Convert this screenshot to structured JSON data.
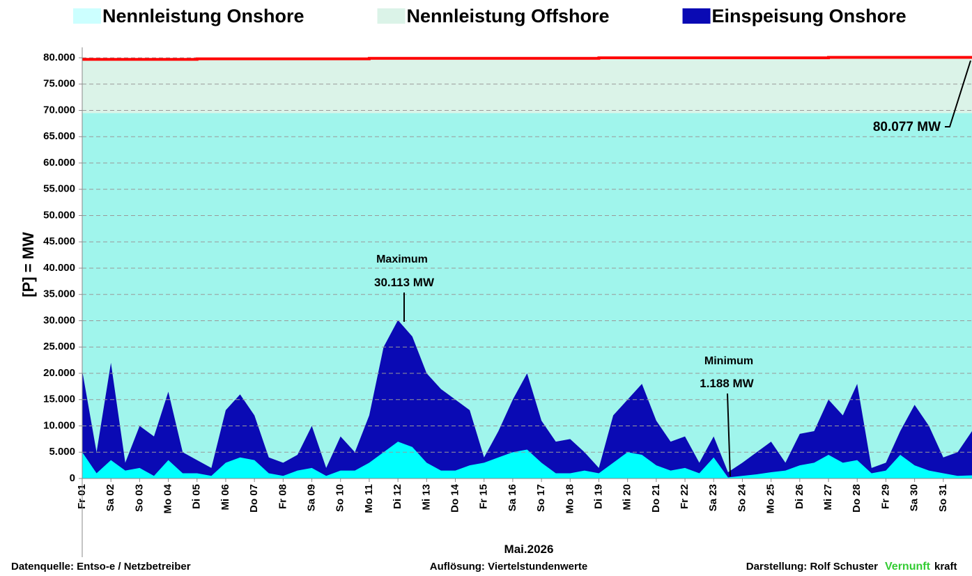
{
  "chart_data": {
    "type": "area",
    "legend": "top",
    "grid": true,
    "ylabel": "[P] = MW",
    "xlabel": "Mai.2026",
    "xlim": [
      1,
      32
    ],
    "ylim": [
      0,
      80000
    ],
    "yticks": [
      0,
      {
        "value": 5000,
        "label": "5.000"
      },
      {
        "value": 10000,
        "label": "10.000"
      },
      {
        "value": 15000,
        "label": "15.000"
      },
      {
        "value": 20000,
        "label": "20.000"
      },
      {
        "value": 25000,
        "label": "25.000"
      },
      {
        "value": 30000,
        "label": "30.000"
      },
      {
        "value": 35000,
        "label": "35.000"
      },
      {
        "value": 40000,
        "label": "40.000"
      },
      {
        "value": 45000,
        "label": "45.000"
      },
      {
        "value": 50000,
        "label": "50.000"
      },
      {
        "value": 55000,
        "label": "55.000"
      },
      {
        "value": 60000,
        "label": "60.000"
      },
      {
        "value": 65000,
        "label": "65.000"
      },
      {
        "value": 70000,
        "label": "70.000"
      },
      {
        "value": 75000,
        "label": "75.000"
      },
      {
        "value": 80000,
        "label": "80.000"
      }
    ],
    "xticks": [
      {
        "value": 1,
        "label": "Fr 01"
      },
      {
        "value": 2,
        "label": "Sa 02"
      },
      {
        "value": 3,
        "label": "So 03"
      },
      {
        "value": 4,
        "label": "Mo 04"
      },
      {
        "value": 5,
        "label": "Di 05"
      },
      {
        "value": 6,
        "label": "Mi 06"
      },
      {
        "value": 7,
        "label": "Do 07"
      },
      {
        "value": 8,
        "label": "Fr 08"
      },
      {
        "value": 9,
        "label": "Sa 09"
      },
      {
        "value": 10,
        "label": "So 10"
      },
      {
        "value": 11,
        "label": "Mo 11"
      },
      {
        "value": 12,
        "label": "Di 12"
      },
      {
        "value": 13,
        "label": "Mi 13"
      },
      {
        "value": 14,
        "label": "Do 14"
      },
      {
        "value": 15,
        "label": "Fr 15"
      },
      {
        "value": 16,
        "label": "Sa 16"
      },
      {
        "value": 17,
        "label": "So 17"
      },
      {
        "value": 18,
        "label": "Mo 18"
      },
      {
        "value": 19,
        "label": "Di 19"
      },
      {
        "value": 20,
        "label": "Mi 20"
      },
      {
        "value": 21,
        "label": "Do 21"
      },
      {
        "value": 22,
        "label": "Fr 22"
      },
      {
        "value": 23,
        "label": "Sa 23"
      },
      {
        "value": 24,
        "label": "So 24"
      },
      {
        "value": 25,
        "label": "Mo 25"
      },
      {
        "value": 26,
        "label": "Di 26"
      },
      {
        "value": 27,
        "label": "Mi 27"
      },
      {
        "value": 28,
        "label": "Do 28"
      },
      {
        "value": 29,
        "label": "Fr 29"
      },
      {
        "value": 30,
        "label": "Sa 30"
      },
      {
        "value": 31,
        "label": "So 31"
      }
    ],
    "series": [
      {
        "name": "Nennleistung Onshore",
        "color": "#a0f5ec",
        "legend_color": "#ccffff",
        "stack": true,
        "x": [
          1,
          32
        ],
        "values": [
          69500,
          69500
        ]
      },
      {
        "name": "Nennleistung Offshore",
        "color": "#dbf3e8",
        "line_color": "#ff0000",
        "stack": true,
        "x": [
          1,
          5,
          5,
          11,
          11,
          19,
          19,
          27,
          27,
          32
        ],
        "values": [
          10200,
          10200,
          10300,
          10300,
          10400,
          10400,
          10500,
          10500,
          10577,
          10577
        ]
      },
      {
        "name": "Einspeisung Onshore",
        "color": "#0a0ab4",
        "x": [
          1,
          1.5,
          2,
          2.5,
          3,
          3.5,
          4,
          4.5,
          5,
          5.5,
          6,
          6.5,
          7,
          7.5,
          8,
          8.5,
          9,
          9.5,
          10,
          10.5,
          11,
          11.5,
          12,
          12.5,
          13,
          13.5,
          14,
          14.5,
          15,
          15.5,
          16,
          16.5,
          17,
          17.5,
          18,
          18.5,
          19,
          19.5,
          20,
          20.5,
          21,
          21.5,
          22,
          22.5,
          23,
          23.5,
          24,
          24.5,
          25,
          25.5,
          26,
          26.5,
          27,
          27.5,
          28,
          28.5,
          29,
          29.5,
          30,
          30.5,
          31,
          31.5,
          32
        ],
        "values": [
          20500,
          5000,
          22000,
          3000,
          10000,
          8000,
          16500,
          5000,
          3500,
          2000,
          13000,
          16000,
          12000,
          4000,
          3000,
          4500,
          10000,
          2000,
          8000,
          5000,
          12000,
          25000,
          30113,
          27000,
          20000,
          17000,
          15000,
          13000,
          4000,
          9000,
          15000,
          20000,
          11000,
          7000,
          7500,
          5000,
          2000,
          12000,
          15000,
          18000,
          11000,
          7000,
          8000,
          3000,
          8000,
          1188,
          3000,
          5000,
          7000,
          3000,
          8500,
          9000,
          15000,
          12000,
          18000,
          2000,
          3000,
          9000,
          14000,
          10000,
          4000,
          5000,
          9000
        ]
      },
      {
        "color": "#00ffff",
        "x": [
          1,
          1.5,
          2,
          2.5,
          3,
          3.5,
          4,
          4.5,
          5,
          5.5,
          6,
          6.5,
          7,
          7.5,
          8,
          8.5,
          9,
          9.5,
          10,
          10.5,
          11,
          11.5,
          12,
          12.5,
          13,
          13.5,
          14,
          14.5,
          15,
          15.5,
          16,
          16.5,
          17,
          17.5,
          18,
          18.5,
          19,
          19.5,
          20,
          20.5,
          21,
          21.5,
          22,
          22.5,
          23,
          23.5,
          24,
          24.5,
          25,
          25.5,
          26,
          26.5,
          27,
          27.5,
          28,
          28.5,
          29,
          29.5,
          30,
          30.5,
          31,
          31.5,
          32
        ],
        "values": [
          5000,
          1000,
          3500,
          1500,
          2000,
          500,
          3500,
          1000,
          1000,
          500,
          3000,
          4000,
          3500,
          1000,
          500,
          1500,
          2000,
          500,
          1500,
          1500,
          3000,
          5000,
          7000,
          6000,
          3000,
          1500,
          1500,
          2500,
          3000,
          4000,
          5000,
          5500,
          3000,
          1000,
          1000,
          1500,
          1000,
          3000,
          5000,
          4500,
          2500,
          1500,
          2000,
          1000,
          4000,
          200,
          500,
          800,
          1200,
          1500,
          2500,
          3000,
          4500,
          3000,
          3500,
          1000,
          1500,
          4500,
          2500,
          1500,
          1000,
          500,
          600
        ]
      }
    ],
    "annotations": [
      {
        "title": "Maximum",
        "text": "30.113 MW"
      },
      {
        "title": "Minimum",
        "text": "1.188 MW"
      },
      {
        "text": "80.077 MW"
      }
    ],
    "footer": {
      "source": "Datenquelle:  Entso-e  / Netzbetreiber",
      "resolution": "Auflösung: Viertelstundenwerte",
      "author": "Darstellung:  Rolf Schuster",
      "brand1": "Vernunft",
      "brand2": "kraft"
    }
  }
}
